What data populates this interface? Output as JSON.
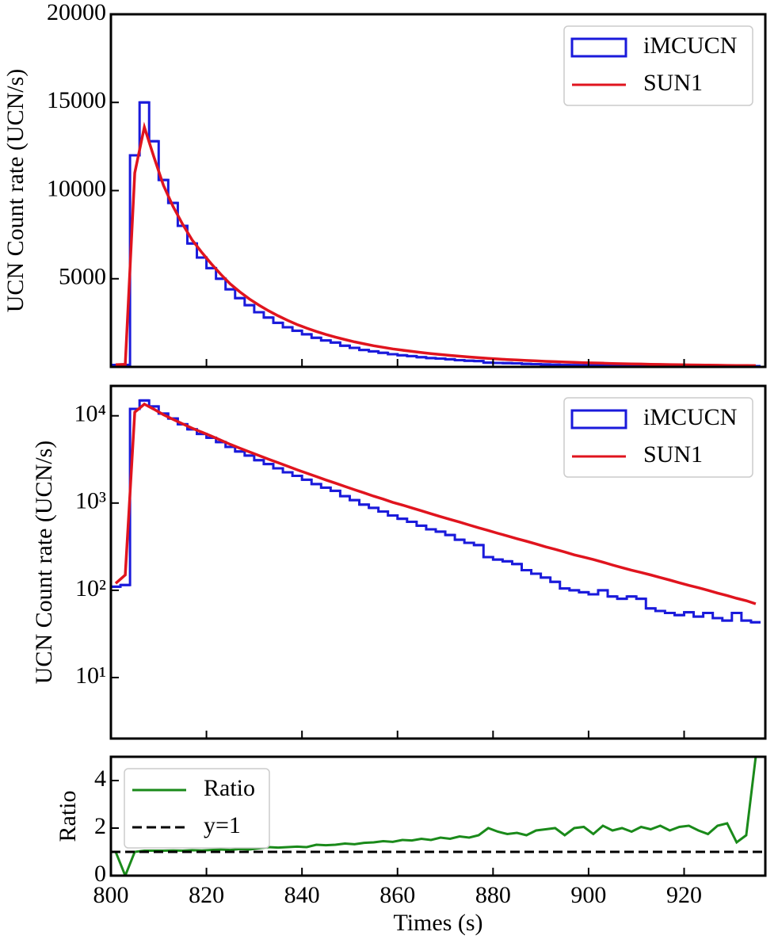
{
  "chart_data": [
    {
      "type": "histogram",
      "ylabel": "UCN Count rate (UCN/s)",
      "xlim": [
        800,
        937
      ],
      "ylim": [
        0,
        20000
      ],
      "yticks": [
        5000,
        10000,
        15000,
        20000
      ],
      "log": false,
      "legend": "upper right",
      "bins": [
        800,
        802,
        804,
        806,
        808,
        810,
        812,
        814,
        816,
        818,
        820,
        822,
        824,
        826,
        828,
        830,
        832,
        834,
        836,
        838,
        840,
        842,
        844,
        846,
        848,
        850,
        852,
        854,
        856,
        858,
        860,
        862,
        864,
        866,
        868,
        870,
        872,
        874,
        876,
        878,
        880,
        882,
        884,
        886,
        888,
        890,
        892,
        894,
        896,
        898,
        900,
        902,
        904,
        906,
        908,
        910,
        912,
        914,
        916,
        918,
        920,
        922,
        924,
        926,
        928,
        930,
        932,
        934,
        936
      ],
      "x": [
        801,
        803,
        805,
        807,
        809,
        811,
        813,
        815,
        817,
        819,
        821,
        823,
        825,
        827,
        829,
        831,
        833,
        835,
        837,
        839,
        841,
        843,
        845,
        847,
        849,
        851,
        853,
        855,
        857,
        859,
        861,
        863,
        865,
        867,
        869,
        871,
        873,
        875,
        877,
        879,
        881,
        883,
        885,
        887,
        889,
        891,
        893,
        895,
        897,
        899,
        901,
        903,
        905,
        907,
        909,
        911,
        913,
        915,
        917,
        919,
        921,
        923,
        925,
        927,
        929,
        931,
        933,
        935
      ],
      "series": [
        {
          "name": "iMCUCN",
          "color": "#1a1adb",
          "values": [
            110,
            115,
            12000,
            15000,
            12800,
            10600,
            9300,
            8000,
            7000,
            6200,
            5600,
            5000,
            4400,
            3900,
            3500,
            3100,
            2800,
            2500,
            2250,
            2050,
            1850,
            1650,
            1500,
            1380,
            1200,
            1080,
            960,
            880,
            800,
            720,
            660,
            610,
            550,
            500,
            470,
            430,
            380,
            350,
            330,
            240,
            225,
            215,
            200,
            170,
            155,
            140,
            125,
            105,
            100,
            95,
            90,
            100,
            85,
            80,
            85,
            80,
            62,
            58,
            55,
            52,
            56,
            50,
            55,
            48,
            45,
            55,
            45,
            43
          ]
        },
        {
          "name": "SUN1",
          "color": "#e0141e",
          "values": [
            120,
            150,
            11000,
            13600,
            11900,
            10300,
            9100,
            8100,
            7200,
            6500,
            5850,
            5250,
            4700,
            4250,
            3850,
            3500,
            3180,
            2900,
            2640,
            2400,
            2200,
            2010,
            1840,
            1690,
            1550,
            1420,
            1310,
            1200,
            1110,
            1020,
            950,
            880,
            815,
            755,
            700,
            650,
            605,
            560,
            520,
            485,
            450,
            420,
            390,
            365,
            340,
            315,
            295,
            275,
            255,
            240,
            225,
            210,
            195,
            182,
            170,
            160,
            150,
            140,
            131,
            122,
            114,
            107,
            100,
            93,
            87,
            81,
            76,
            70
          ]
        }
      ]
    },
    {
      "type": "histogram",
      "ylabel": "UCN Count rate (UCN/s)",
      "xlim": [
        800,
        937
      ],
      "ylim": [
        2,
        22000
      ],
      "log": true,
      "legend": "upper right",
      "yticks": [
        {
          "value": 10,
          "label": "10¹"
        },
        {
          "value": 100,
          "label": "10²"
        },
        {
          "value": 1000,
          "label": "10³"
        },
        {
          "value": 10000,
          "label": "10⁴"
        }
      ],
      "bins": [
        800,
        802,
        804,
        806,
        808,
        810,
        812,
        814,
        816,
        818,
        820,
        822,
        824,
        826,
        828,
        830,
        832,
        834,
        836,
        838,
        840,
        842,
        844,
        846,
        848,
        850,
        852,
        854,
        856,
        858,
        860,
        862,
        864,
        866,
        868,
        870,
        872,
        874,
        876,
        878,
        880,
        882,
        884,
        886,
        888,
        890,
        892,
        894,
        896,
        898,
        900,
        902,
        904,
        906,
        908,
        910,
        912,
        914,
        916,
        918,
        920,
        922,
        924,
        926,
        928,
        930,
        932,
        934,
        936
      ],
      "x": [
        801,
        803,
        805,
        807,
        809,
        811,
        813,
        815,
        817,
        819,
        821,
        823,
        825,
        827,
        829,
        831,
        833,
        835,
        837,
        839,
        841,
        843,
        845,
        847,
        849,
        851,
        853,
        855,
        857,
        859,
        861,
        863,
        865,
        867,
        869,
        871,
        873,
        875,
        877,
        879,
        881,
        883,
        885,
        887,
        889,
        891,
        893,
        895,
        897,
        899,
        901,
        903,
        905,
        907,
        909,
        911,
        913,
        915,
        917,
        919,
        921,
        923,
        925,
        927,
        929,
        931,
        933,
        935
      ],
      "series": [
        {
          "name": "iMCUCN",
          "color": "#1a1adb",
          "values": [
            110,
            115,
            12000,
            15000,
            12800,
            10600,
            9300,
            8000,
            7000,
            6200,
            5600,
            5000,
            4400,
            3900,
            3500,
            3100,
            2800,
            2500,
            2250,
            2050,
            1850,
            1650,
            1500,
            1380,
            1200,
            1080,
            960,
            880,
            800,
            720,
            660,
            610,
            550,
            500,
            470,
            430,
            380,
            350,
            330,
            240,
            225,
            215,
            200,
            170,
            155,
            140,
            125,
            105,
            100,
            95,
            90,
            100,
            85,
            80,
            85,
            80,
            62,
            58,
            55,
            52,
            56,
            50,
            55,
            48,
            45,
            55,
            45,
            43
          ]
        },
        {
          "name": "SUN1",
          "color": "#e0141e",
          "values": [
            120,
            150,
            11000,
            13600,
            11900,
            10300,
            9100,
            8100,
            7200,
            6500,
            5850,
            5250,
            4700,
            4250,
            3850,
            3500,
            3180,
            2900,
            2640,
            2400,
            2200,
            2010,
            1840,
            1690,
            1550,
            1420,
            1310,
            1200,
            1110,
            1020,
            950,
            880,
            815,
            755,
            700,
            650,
            605,
            560,
            520,
            485,
            450,
            420,
            390,
            365,
            340,
            315,
            295,
            275,
            255,
            240,
            225,
            210,
            195,
            182,
            170,
            160,
            150,
            140,
            131,
            122,
            114,
            107,
            100,
            93,
            87,
            81,
            76,
            70
          ]
        }
      ]
    },
    {
      "type": "line",
      "ylabel": "Ratio",
      "xlabel": "Times (s)",
      "xlim": [
        800,
        937
      ],
      "ylim": [
        0,
        5
      ],
      "yticks": [
        0,
        2,
        4
      ],
      "xticks": [
        800,
        820,
        840,
        860,
        880,
        900,
        920
      ],
      "legend": "upper left",
      "series": [
        {
          "name": "Ratio",
          "color": "#1a8a1a",
          "x": [
            801,
            803,
            805,
            807,
            809,
            811,
            813,
            815,
            817,
            819,
            821,
            823,
            825,
            827,
            829,
            831,
            833,
            835,
            837,
            839,
            841,
            843,
            845,
            847,
            849,
            851,
            853,
            855,
            857,
            859,
            861,
            863,
            865,
            867,
            869,
            871,
            873,
            875,
            877,
            879,
            881,
            883,
            885,
            887,
            889,
            891,
            893,
            895,
            897,
            899,
            901,
            903,
            905,
            907,
            909,
            911,
            913,
            915,
            917,
            919,
            921,
            923,
            925,
            927,
            929,
            931,
            933,
            935
          ],
          "values": [
            1.0,
            0.0,
            1.0,
            1.05,
            1.05,
            1.05,
            1.06,
            1.05,
            1.07,
            1.06,
            1.08,
            1.1,
            1.08,
            1.12,
            1.1,
            1.15,
            1.2,
            1.18,
            1.2,
            1.22,
            1.2,
            1.3,
            1.28,
            1.3,
            1.35,
            1.32,
            1.38,
            1.4,
            1.45,
            1.42,
            1.5,
            1.48,
            1.55,
            1.5,
            1.6,
            1.55,
            1.65,
            1.6,
            1.7,
            2.0,
            1.85,
            1.75,
            1.8,
            1.7,
            1.9,
            1.95,
            2.0,
            1.7,
            2.0,
            2.05,
            1.75,
            2.1,
            1.9,
            2.0,
            1.85,
            2.05,
            1.95,
            2.1,
            1.9,
            2.05,
            2.1,
            1.9,
            1.75,
            2.1,
            2.2,
            1.4,
            1.7,
            5.0
          ]
        },
        {
          "name": "y=1",
          "color": "#000000",
          "dash": true,
          "x": [
            800,
            937
          ],
          "values": [
            1,
            1
          ]
        }
      ]
    }
  ]
}
